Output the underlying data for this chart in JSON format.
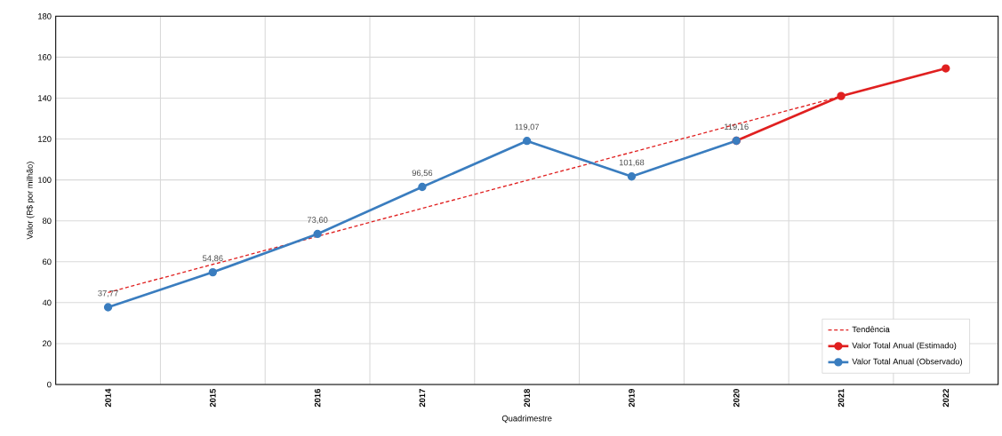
{
  "chart_data": {
    "type": "line",
    "xlabel": "Quadrimestre",
    "ylabel": "Valor (R$ por milhão)",
    "categories": [
      "2014",
      "2015",
      "2016",
      "2017",
      "2018",
      "2019",
      "2020",
      "2021",
      "2022"
    ],
    "series": [
      {
        "name": "Tendência",
        "color": "#e02020",
        "line_style": "dashed",
        "marker": "none",
        "values": [
          45.0,
          58.7,
          72.4,
          86.1,
          99.8,
          113.5,
          127.2,
          140.9,
          null
        ]
      },
      {
        "name": "Valor Total Anual (Estimado)",
        "color": "#e02020",
        "values": [
          null,
          null,
          null,
          null,
          null,
          null,
          119.16,
          141,
          154.5
        ]
      },
      {
        "name": "Valor Total Anual (Observado)",
        "color": "#3a7dbf",
        "values": [
          37.77,
          54.86,
          73.6,
          96.56,
          119.07,
          101.68,
          119.16,
          null,
          null
        ],
        "value_labels": [
          "37,77",
          "54,86",
          "73,60",
          "96,56",
          "119,07",
          "101,68",
          "119,16",
          null,
          null
        ]
      }
    ],
    "ylim": [
      0,
      180
    ],
    "yticks": [
      0,
      20,
      40,
      60,
      80,
      100,
      120,
      140,
      160,
      180
    ],
    "grid": true,
    "legend": "bottom right",
    "marker": "circle",
    "line_style": "solid"
  }
}
